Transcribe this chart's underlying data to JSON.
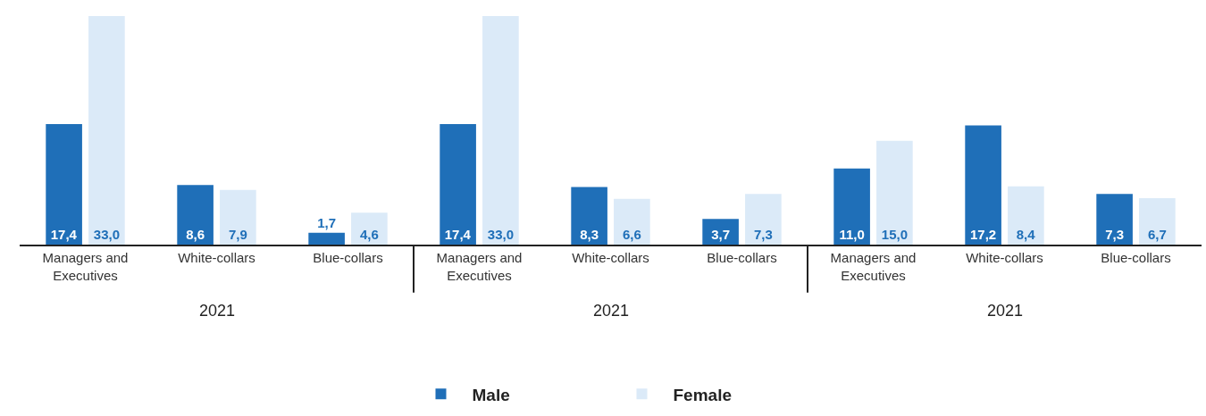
{
  "chart_data": {
    "type": "bar",
    "categories": [
      "Managers and Executives",
      "White-collars",
      "Blue-collars",
      "Managers and Executives",
      "White-collars",
      "Blue-collars",
      "Managers and Executives",
      "White-collars",
      "Blue-collars"
    ],
    "series": [
      {
        "name": "Male",
        "color": "#1f6fb8",
        "values": [
          17.4,
          8.6,
          1.7,
          17.4,
          8.3,
          3.7,
          11.0,
          17.2,
          7.3
        ],
        "value_labels": [
          "17,4",
          "8,6",
          "1,7",
          "17,4",
          "8,3",
          "3,7",
          "11,0",
          "17,2",
          "7,3"
        ]
      },
      {
        "name": "Female",
        "color": "#dbeaf8",
        "values": [
          33.0,
          7.9,
          4.6,
          33.0,
          6.6,
          7.3,
          15.0,
          8.4,
          6.7
        ],
        "value_labels": [
          "33,0",
          "7,9",
          "4,6",
          "33,0",
          "6,6",
          "7,3",
          "15,0",
          "8,4",
          "6,7"
        ]
      }
    ],
    "annotations": [
      "2021",
      "2021",
      "2021"
    ],
    "legend": "bottom",
    "grid": false
  }
}
